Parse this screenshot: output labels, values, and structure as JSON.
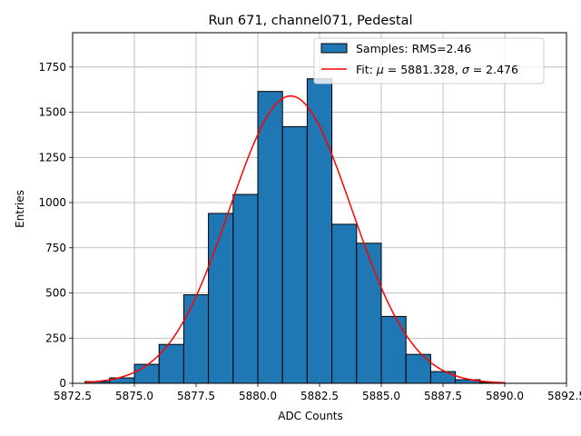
{
  "chart_data": {
    "type": "bar",
    "title": "Run 671, channel071, Pedestal",
    "xlabel": "ADC Counts",
    "ylabel": "Entries",
    "xlim": [
      5872.5,
      5892.5
    ],
    "ylim": [
      0,
      1940
    ],
    "xticks": [
      5872.5,
      5875.0,
      5877.5,
      5880.0,
      5882.5,
      5885.0,
      5887.5,
      5890.0,
      5892.5
    ],
    "xtick_labels": [
      "5872.5",
      "5875.0",
      "5877.5",
      "5880.0",
      "5882.5",
      "5885.0",
      "5887.5",
      "5890.0",
      "5892.5"
    ],
    "yticks": [
      0,
      250,
      500,
      750,
      1000,
      1250,
      1500,
      1750
    ],
    "ytick_labels": [
      "0",
      "250",
      "500",
      "750",
      "1000",
      "1250",
      "1500",
      "1750"
    ],
    "grid": true,
    "legend_position": "upper right",
    "histogram": {
      "name": "Samples: RMS=2.46",
      "color": "#1f77b4",
      "edge_color": "#000000",
      "bin_edges": [
        5873,
        5874,
        5875,
        5876,
        5877,
        5878,
        5879,
        5880,
        5881,
        5882,
        5883,
        5884,
        5885,
        5886,
        5887,
        5888,
        5889,
        5890
      ],
      "counts": [
        10,
        30,
        105,
        215,
        490,
        940,
        1045,
        1615,
        1420,
        1685,
        880,
        775,
        370,
        160,
        65,
        20,
        5
      ]
    },
    "fit": {
      "legend_prefix": "Fit: ",
      "mu_symbol": "μ",
      "mu_text": " = 5881.328, ",
      "sigma_symbol": "σ",
      "sigma_text": " = 2.476",
      "color": "#ff0000",
      "mu": 5881.328,
      "sigma": 2.476,
      "amplitude": 1590,
      "x_range": [
        5873,
        5890
      ]
    }
  }
}
